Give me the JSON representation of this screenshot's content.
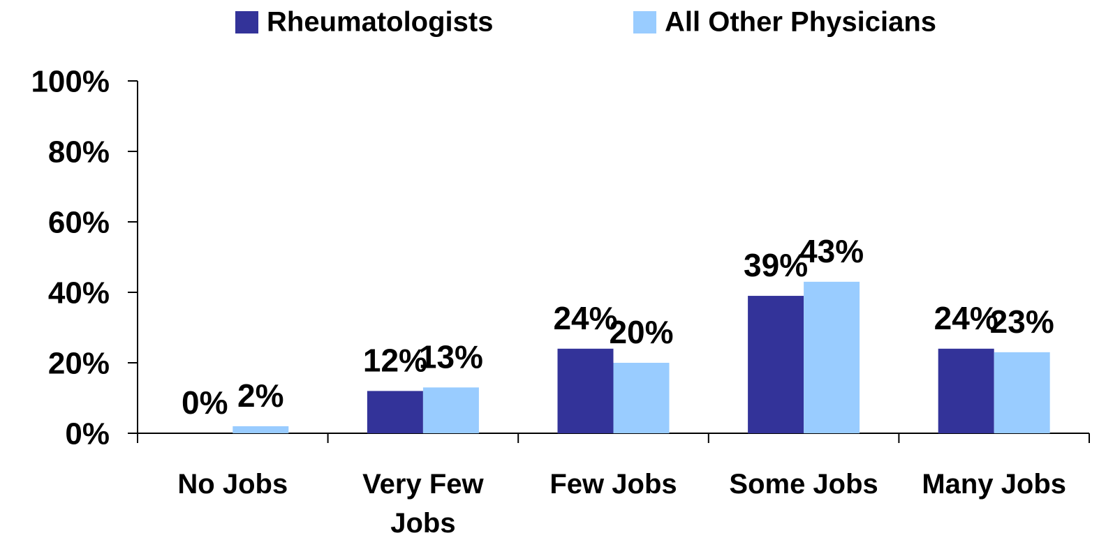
{
  "chart_data": {
    "type": "bar",
    "categories": [
      "No Jobs",
      "Very Few Jobs",
      "Few Jobs",
      "Some Jobs",
      "Many Jobs"
    ],
    "series": [
      {
        "name": "Rheumatologists",
        "color": "#333399",
        "values": [
          0,
          12,
          24,
          39,
          24
        ],
        "value_labels": [
          "0%",
          "12%",
          "24%",
          "39%",
          "24%"
        ]
      },
      {
        "name": "All Other Physicians",
        "color": "#99ccff",
        "values": [
          2,
          13,
          20,
          43,
          23
        ],
        "value_labels": [
          "2%",
          "13%",
          "20%",
          "43%",
          "23%"
        ]
      }
    ],
    "ylim": [
      0,
      100
    ],
    "yticks": [
      {
        "value": 0,
        "label": "0%"
      },
      {
        "value": 20,
        "label": "20%"
      },
      {
        "value": 40,
        "label": "40%"
      },
      {
        "value": 60,
        "label": "60%"
      },
      {
        "value": 80,
        "label": "80%"
      },
      {
        "value": 100,
        "label": "100%"
      }
    ],
    "legend": "top"
  }
}
